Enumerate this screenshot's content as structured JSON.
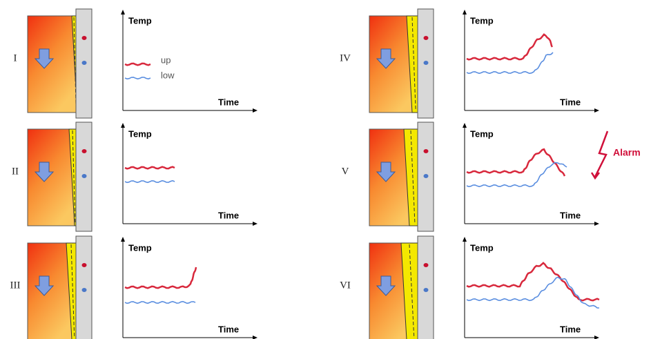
{
  "panels": [
    {
      "label": "I",
      "y_label": "Temp",
      "x_label": "Time"
    },
    {
      "label": "II",
      "y_label": "Temp",
      "x_label": "Time"
    },
    {
      "label": "III",
      "y_label": "Temp",
      "x_label": "Time"
    },
    {
      "label": "IV",
      "y_label": "Temp",
      "x_label": "Time"
    },
    {
      "label": "V",
      "y_label": "Temp",
      "x_label": "Time"
    },
    {
      "label": "VI",
      "y_label": "Temp",
      "x_label": "Time"
    }
  ],
  "legend": [
    "up",
    "low"
  ],
  "alarm": "Alarm"
}
